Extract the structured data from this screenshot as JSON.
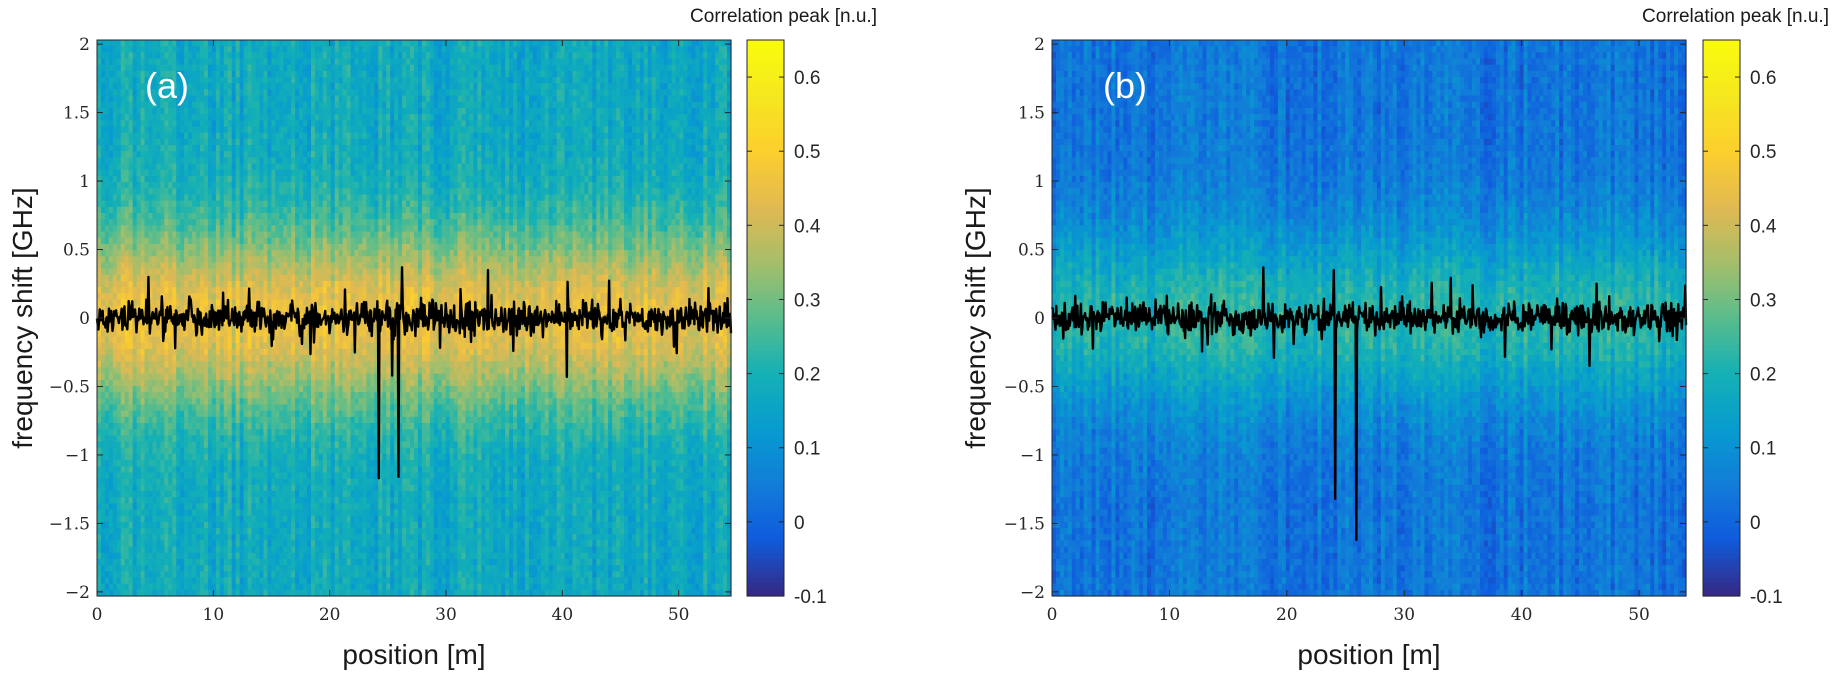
{
  "chart_data": [
    {
      "type": "heatmap",
      "panel_label": "(a)",
      "xlabel": "position  [m]",
      "ylabel": "frequency shift  [GHz]",
      "colorbar_label": "Correlation peak  [n.u.]",
      "xlim": [
        0,
        54.5
      ],
      "ylim": [
        -2.03,
        2.03
      ],
      "clim": [
        -0.1,
        0.65
      ],
      "x_ticks": [
        0,
        10,
        20,
        30,
        40,
        50
      ],
      "x_tick_labels": [
        "0",
        "10",
        "20",
        "30",
        "40",
        "50"
      ],
      "y_ticks": [
        2,
        1.5,
        1,
        0.5,
        0,
        -0.5,
        -1,
        -1.5,
        -2
      ],
      "y_tick_labels": [
        "2",
        "1.5",
        "1",
        "0.5",
        "0",
        "−0.5",
        "−1",
        "−1.5",
        "−2"
      ],
      "colorbar_ticks": [
        0.6,
        0.5,
        0.4,
        0.3,
        0.2,
        0.1,
        0,
        -0.1
      ],
      "colorbar_tick_labels": [
        "0.6",
        "0.5",
        "0.4",
        "0.3",
        "0.2",
        "0.1",
        "0",
        "-0.1"
      ],
      "colormap": "parula",
      "background_level": 0.17,
      "peak_level": 0.45,
      "peak_width_ghz": 0.9,
      "overlay_series": {
        "color": "#000000",
        "baseline_ghz": 0.0,
        "noise_std_ghz": 0.055,
        "dips": [
          {
            "x": 24.2,
            "y": -1.17
          },
          {
            "x": 25.9,
            "y": -1.16
          },
          {
            "x": 25.4,
            "y": -0.42
          },
          {
            "x": 40.4,
            "y": -0.43
          }
        ],
        "spikes": [
          {
            "x": 26.2,
            "y": 0.37
          },
          {
            "x": 4.4,
            "y": 0.3
          },
          {
            "x": 33.6,
            "y": 0.35
          }
        ]
      }
    },
    {
      "type": "heatmap",
      "panel_label": "(b)",
      "xlabel": "position  [m]",
      "ylabel": "frequency shift  [GHz]",
      "colorbar_label": "Correlation peak  [n.u.]",
      "xlim": [
        0,
        54
      ],
      "ylim": [
        -2.03,
        2.03
      ],
      "clim": [
        -0.1,
        0.65
      ],
      "x_ticks": [
        0,
        10,
        20,
        30,
        40,
        50
      ],
      "x_tick_labels": [
        "0",
        "10",
        "20",
        "30",
        "40",
        "50"
      ],
      "y_ticks": [
        2,
        1.5,
        1,
        0.5,
        0,
        -0.5,
        -1,
        -1.5,
        -2
      ],
      "y_tick_labels": [
        "2",
        "1.5",
        "1",
        "0.5",
        "0",
        "−0.5",
        "−1",
        "−1.5",
        "−2"
      ],
      "colorbar_ticks": [
        0.6,
        0.5,
        0.4,
        0.3,
        0.2,
        0.1,
        0,
        -0.1
      ],
      "colorbar_tick_labels": [
        "0.6",
        "0.5",
        "0.4",
        "0.3",
        "0.2",
        "0.1",
        "0",
        "-0.1"
      ],
      "colormap": "parula",
      "background_level": 0.03,
      "peak_level": 0.22,
      "peak_width_ghz": 0.9,
      "overlay_series": {
        "color": "#000000",
        "baseline_ghz": 0.0,
        "noise_std_ghz": 0.055,
        "dips": [
          {
            "x": 24.1,
            "y": -1.32
          },
          {
            "x": 25.9,
            "y": -1.62
          },
          {
            "x": 45.8,
            "y": -0.35
          }
        ],
        "spikes": [
          {
            "x": 18.0,
            "y": 0.37
          },
          {
            "x": 24.0,
            "y": 0.35
          }
        ]
      }
    }
  ]
}
